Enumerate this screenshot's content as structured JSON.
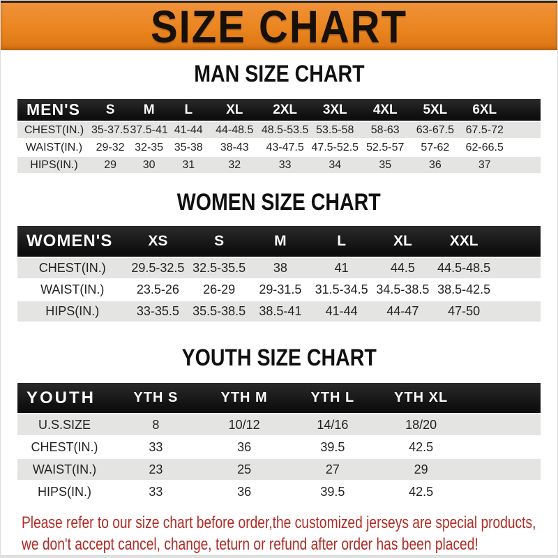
{
  "banner": {
    "title": "SIZE CHART"
  },
  "men": {
    "title": "MAN SIZE CHART",
    "header": [
      "MEN'S",
      "S",
      "M",
      "L",
      "XL",
      "2XL",
      "3XL",
      "4XL",
      "5XL",
      "6XL"
    ],
    "rows": [
      {
        "label": "CHEST(IN.)",
        "values": [
          "35-37.5",
          "37.5-41",
          "41-44",
          "44-48.5",
          "48.5-53.5",
          "53.5-58",
          "58-63",
          "63-67.5",
          "67.5-72"
        ]
      },
      {
        "label": "WAIST(IN.)",
        "values": [
          "29-32",
          "32-35",
          "35-38",
          "38-43",
          "43-47.5",
          "47.5-52.5",
          "52.5-57",
          "57-62",
          "62-66.5"
        ]
      },
      {
        "label": "HIPS(IN.)",
        "values": [
          "29",
          "30",
          "31",
          "32",
          "33",
          "34",
          "35",
          "36",
          "37"
        ]
      }
    ]
  },
  "women": {
    "title": "WOMEN SIZE CHART",
    "header": [
      "WOMEN'S",
      "XS",
      "S",
      "M",
      "L",
      "XL",
      "XXL"
    ],
    "rows": [
      {
        "label": "CHEST(IN.)",
        "values": [
          "29.5-32.5",
          "32.5-35.5",
          "38",
          "41",
          "44.5",
          "44.5-48.5"
        ]
      },
      {
        "label": "WAIST(IN.)",
        "values": [
          "23.5-26",
          "26-29",
          "29-31.5",
          "31.5-34.5",
          "34.5-38.5",
          "38.5-42.5"
        ]
      },
      {
        "label": "HIPS(IN.)",
        "values": [
          "33-35.5",
          "35.5-38.5",
          "38.5-41",
          "41-44",
          "44-47",
          "47-50"
        ]
      }
    ]
  },
  "youth": {
    "title": "YOUTH SIZE CHART",
    "header": [
      "YOUTH",
      "YTH S",
      "YTH M",
      "YTH L",
      "YTH XL"
    ],
    "rows": [
      {
        "label": "U.S.SIZE",
        "values": [
          "8",
          "10/12",
          "14/16",
          "18/20"
        ]
      },
      {
        "label": "CHEST(IN.)",
        "values": [
          "33",
          "36",
          "39.5",
          "42.5"
        ]
      },
      {
        "label": "WAIST(IN.)",
        "values": [
          "23",
          "25",
          "27",
          "29"
        ]
      },
      {
        "label": "HIPS(IN.)",
        "values": [
          "33",
          "36",
          "39.5",
          "42.5"
        ]
      }
    ]
  },
  "note": {
    "line1": "Please refer to our size chart before order,the customized jerseys are special products,",
    "line2": "we don't accept cancel, change, teturn or refund after order has been placed!"
  },
  "colors": {
    "banner_orange": "#EA851F",
    "header_bar_black": "#151515",
    "row_alt_gray": "#E4E4E3",
    "note_red": "#B12B25"
  }
}
